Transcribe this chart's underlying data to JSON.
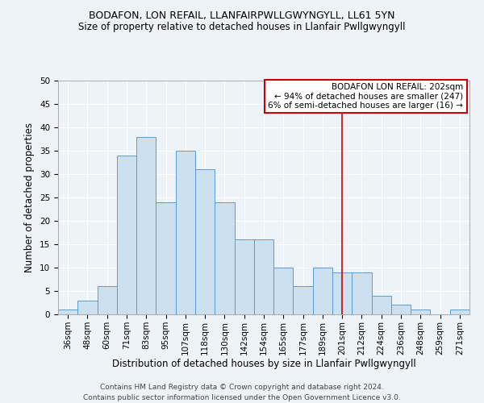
{
  "title1": "BODAFON, LON REFAIL, LLANFAIRPWLLGWYNGYLL, LL61 5YN",
  "title2": "Size of property relative to detached houses in Llanfair Pwllgwyngyll",
  "xlabel": "Distribution of detached houses by size in Llanfair Pwllgwyngyll",
  "ylabel": "Number of detached properties",
  "footnote1": "Contains HM Land Registry data © Crown copyright and database right 2024.",
  "footnote2": "Contains public sector information licensed under the Open Government Licence v3.0.",
  "bins": [
    "36sqm",
    "48sqm",
    "60sqm",
    "71sqm",
    "83sqm",
    "95sqm",
    "107sqm",
    "118sqm",
    "130sqm",
    "142sqm",
    "154sqm",
    "165sqm",
    "177sqm",
    "189sqm",
    "201sqm",
    "212sqm",
    "224sqm",
    "236sqm",
    "248sqm",
    "259sqm",
    "271sqm"
  ],
  "values": [
    1,
    3,
    6,
    34,
    38,
    24,
    35,
    31,
    24,
    16,
    16,
    10,
    6,
    10,
    9,
    9,
    4,
    2,
    1,
    0,
    1
  ],
  "bar_color": "#cce0f0",
  "bar_edge_color": "#5b9bd5",
  "vline_x": 14,
  "vline_color": "#cc0000",
  "annotation_title": "BODAFON LON REFAIL: 202sqm",
  "annotation_line1": "← 94% of detached houses are smaller (247)",
  "annotation_line2": "6% of semi-detached houses are larger (16) →",
  "annotation_box_color": "#ffffff",
  "annotation_box_edge": "#cc0000",
  "ylim": [
    0,
    50
  ],
  "yticks": [
    0,
    5,
    10,
    15,
    20,
    25,
    30,
    35,
    40,
    45,
    50
  ],
  "background_color": "#eef2f9",
  "grid_color": "#ffffff",
  "title1_fontsize": 9,
  "title2_fontsize": 8.5,
  "xlabel_fontsize": 8.5,
  "ylabel_fontsize": 8.5,
  "tick_fontsize": 7.5,
  "annotation_fontsize": 7.5,
  "footnote_fontsize": 6.5
}
